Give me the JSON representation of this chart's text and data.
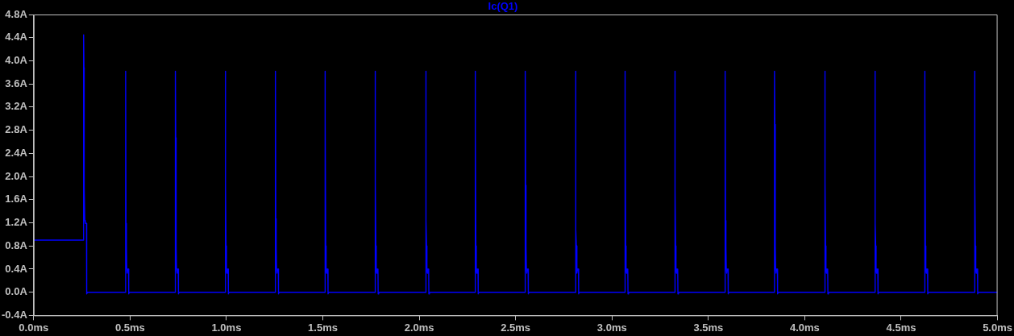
{
  "chart_data": {
    "type": "line",
    "title": "Ic(Q1)",
    "color": "#0000ff",
    "marker": "none",
    "line_style": "solid",
    "grid": false,
    "legend": false,
    "xlim": [
      0,
      5
    ],
    "xticks": [
      {
        "value": 0,
        "label": "0.0ms"
      },
      {
        "value": 0.5,
        "label": "0.5ms"
      },
      {
        "value": 1,
        "label": "1.0ms"
      },
      {
        "value": 1.5,
        "label": "1.5ms"
      },
      {
        "value": 2,
        "label": "2.0ms"
      },
      {
        "value": 2.5,
        "label": "2.5ms"
      },
      {
        "value": 3,
        "label": "3.0ms"
      },
      {
        "value": 3.5,
        "label": "3.5ms"
      },
      {
        "value": 4,
        "label": "4.0ms"
      },
      {
        "value": 4.5,
        "label": "4.5ms"
      },
      {
        "value": 5,
        "label": "5.0ms"
      }
    ],
    "ylim": [
      -0.4,
      4.8
    ],
    "yticks": [
      {
        "value": -0.4,
        "label": "-0.4A"
      },
      {
        "value": 0,
        "label": "0.0A"
      },
      {
        "value": 0.4,
        "label": "0.4A"
      },
      {
        "value": 0.8,
        "label": "0.8A"
      },
      {
        "value": 1.2,
        "label": "1.2A"
      },
      {
        "value": 1.6,
        "label": "1.6A"
      },
      {
        "value": 2.0,
        "label": "2.0A"
      },
      {
        "value": 2.4,
        "label": "2.4A"
      },
      {
        "value": 2.8,
        "label": "2.8A"
      },
      {
        "value": 3.2,
        "label": "3.2A"
      },
      {
        "value": 3.6,
        "label": "3.6A"
      },
      {
        "value": 4.0,
        "label": "4.0A"
      },
      {
        "value": 4.4,
        "label": "4.4A"
      },
      {
        "value": 4.8,
        "label": "4.8A"
      }
    ],
    "x": [
      0,
      0.259,
      0.259,
      0.261,
      0.262,
      0.265,
      0.268,
      0.274,
      0.275,
      0.279,
      0.477,
      0.477,
      0.479,
      0.481,
      0.483,
      0.485,
      0.487,
      0.492,
      0.493,
      0.496,
      0.735,
      0.735,
      0.737,
      0.739,
      0.741,
      0.743,
      0.745,
      0.75,
      0.751,
      0.754,
      0.994,
      0.994,
      0.996,
      0.998,
      1.0,
      1.002,
      1.004,
      1.009,
      1.01,
      1.013,
      1.254,
      1.254,
      1.256,
      1.258,
      1.26,
      1.262,
      1.264,
      1.269,
      1.27,
      1.273,
      1.511,
      1.511,
      1.513,
      1.515,
      1.517,
      1.519,
      1.521,
      1.526,
      1.527,
      1.53,
      1.771,
      1.771,
      1.773,
      1.775,
      1.777,
      1.779,
      1.781,
      1.786,
      1.787,
      1.79,
      2.034,
      2.034,
      2.036,
      2.038,
      2.04,
      2.042,
      2.044,
      2.049,
      2.05,
      2.053,
      2.29,
      2.29,
      2.292,
      2.294,
      2.296,
      2.298,
      2.3,
      2.305,
      2.306,
      2.309,
      2.55,
      2.55,
      2.552,
      2.554,
      2.556,
      2.558,
      2.56,
      2.565,
      2.566,
      2.569,
      2.811,
      2.811,
      2.813,
      2.815,
      2.817,
      2.819,
      2.821,
      2.826,
      2.827,
      2.83,
      3.067,
      3.067,
      3.069,
      3.071,
      3.073,
      3.075,
      3.077,
      3.082,
      3.083,
      3.086,
      3.326,
      3.326,
      3.328,
      3.33,
      3.332,
      3.334,
      3.336,
      3.341,
      3.342,
      3.345,
      3.587,
      3.587,
      3.589,
      3.591,
      3.593,
      3.595,
      3.597,
      3.602,
      3.603,
      3.606,
      3.843,
      3.843,
      3.845,
      3.847,
      3.849,
      3.851,
      3.853,
      3.858,
      3.859,
      3.862,
      4.104,
      4.104,
      4.106,
      4.108,
      4.11,
      4.112,
      4.114,
      4.119,
      4.12,
      4.123,
      4.364,
      4.364,
      4.366,
      4.368,
      4.37,
      4.372,
      4.374,
      4.379,
      4.38,
      4.383,
      4.622,
      4.622,
      4.624,
      4.626,
      4.628,
      4.63,
      4.632,
      4.637,
      4.638,
      4.641,
      4.881,
      4.881,
      4.883,
      4.885,
      4.887,
      4.889,
      4.891,
      4.896,
      4.897,
      4.9,
      5.0
    ],
    "values": [
      0.9,
      0.9,
      4.45,
      3.88,
      1.81,
      1.24,
      1.19,
      1.19,
      -0.03,
      0,
      0,
      3.82,
      1.19,
      0.8,
      0.4,
      0.33,
      0.4,
      0.4,
      -0.03,
      0,
      0,
      3.82,
      2.67,
      0.8,
      0.4,
      0.33,
      0.4,
      0.4,
      -0.03,
      0,
      0,
      3.82,
      1.87,
      0.8,
      0.4,
      0.33,
      0.4,
      0.4,
      -0.03,
      0,
      0,
      3.82,
      1.27,
      0.8,
      0.4,
      0.33,
      0.4,
      0.4,
      -0.03,
      0,
      0,
      3.82,
      3.01,
      0.8,
      0.4,
      0.33,
      0.4,
      0.4,
      -0.03,
      0,
      0,
      3.82,
      1.91,
      0.8,
      0.4,
      0.33,
      0.4,
      0.4,
      -0.03,
      0,
      0,
      3.82,
      1.24,
      0.8,
      0.4,
      0.33,
      0.4,
      0.4,
      -0.03,
      0,
      0,
      3.82,
      2.77,
      0.8,
      0.4,
      0.33,
      0.4,
      0.4,
      -0.03,
      0,
      0,
      3.82,
      1.85,
      0.8,
      0.4,
      0.33,
      0.4,
      0.4,
      -0.03,
      0,
      0,
      3.82,
      1.09,
      0.8,
      0.4,
      0.33,
      0.4,
      0.4,
      -0.03,
      0,
      0,
      3.82,
      2.9,
      0.8,
      0.4,
      0.33,
      0.4,
      0.4,
      -0.03,
      0,
      0,
      3.82,
      1.77,
      0.8,
      0.4,
      0.33,
      0.4,
      0.4,
      -0.03,
      0,
      0,
      3.82,
      1.24,
      0.8,
      0.4,
      0.33,
      0.4,
      0.4,
      -0.03,
      0,
      0,
      3.82,
      2.9,
      0.8,
      0.4,
      0.33,
      0.4,
      0.4,
      -0.03,
      0,
      0,
      3.82,
      1.91,
      0.8,
      0.4,
      0.33,
      0.4,
      0.4,
      -0.03,
      0,
      0,
      3.82,
      1.19,
      0.8,
      0.4,
      0.33,
      0.4,
      0.4,
      -0.03,
      0,
      0,
      3.82,
      3.27,
      0.8,
      0.4,
      0.33,
      0.4,
      0.4,
      -0.03,
      0,
      0,
      3.82,
      1.91,
      0.8,
      0.4,
      0.33,
      0.4,
      0.4,
      -0.03,
      0,
      0
    ]
  }
}
